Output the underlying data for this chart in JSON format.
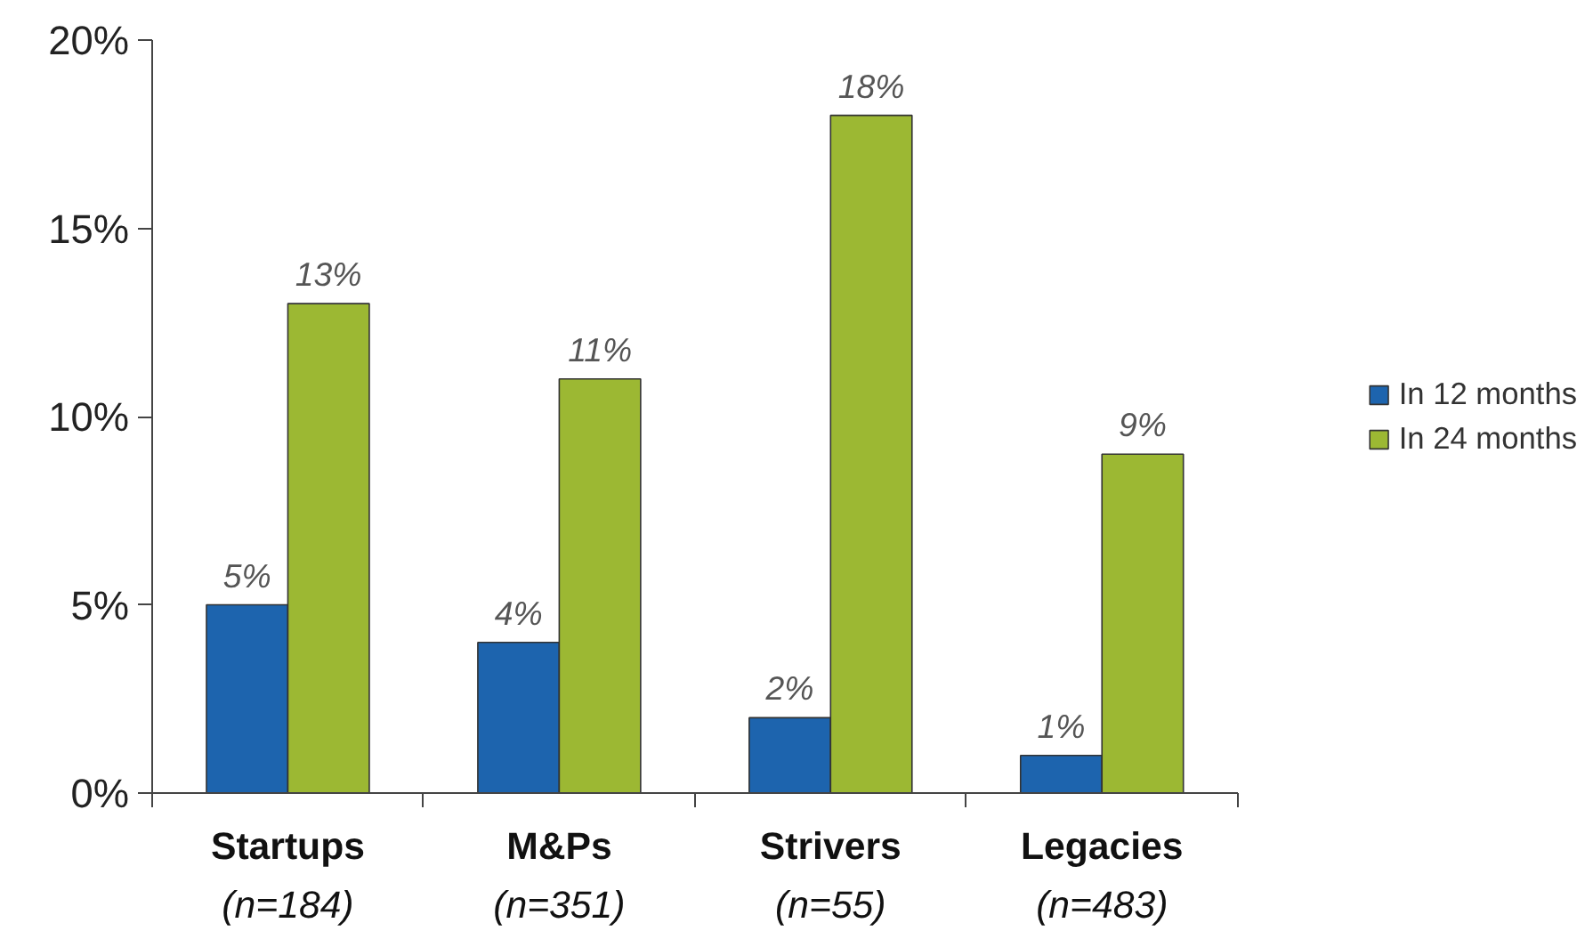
{
  "chart_data": {
    "type": "bar",
    "categories": [
      "Startups\n(n=184)",
      "M&Ps\n(n=351)",
      "Strivers\n(n=55)",
      "Legacies\n(n=483)"
    ],
    "series": [
      {
        "name": "In 12 months",
        "color": "#1d64ae",
        "values": [
          5,
          4,
          2,
          1
        ],
        "value_labels": [
          "5%",
          "4%",
          "2%",
          "1%"
        ]
      },
      {
        "name": "In 24 months",
        "color": "#9cb833",
        "values": [
          13,
          11,
          18,
          9
        ],
        "value_labels": [
          "13%",
          "11%",
          "18%",
          "9%"
        ]
      }
    ],
    "ylim": [
      0,
      20
    ],
    "yticks": [
      {
        "value": 0,
        "label": "0%"
      },
      {
        "value": 5,
        "label": "5%"
      },
      {
        "value": 10,
        "label": "10%"
      },
      {
        "value": 15,
        "label": "15%"
      },
      {
        "value": 20,
        "label": "20%"
      }
    ],
    "grid": false,
    "legend": "right"
  }
}
